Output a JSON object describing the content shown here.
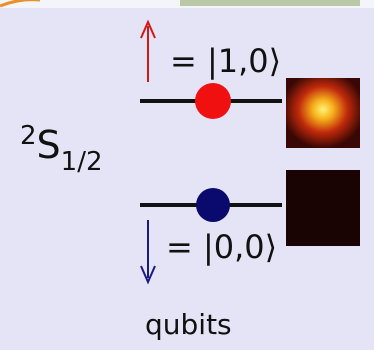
{
  "level": {
    "superscript": "2",
    "main": "S",
    "subscript": "1/2"
  },
  "states": [
    {
      "text": "= |1,0⟩"
    },
    {
      "text": "= |0,0⟩"
    }
  ],
  "caption": "qubits"
}
